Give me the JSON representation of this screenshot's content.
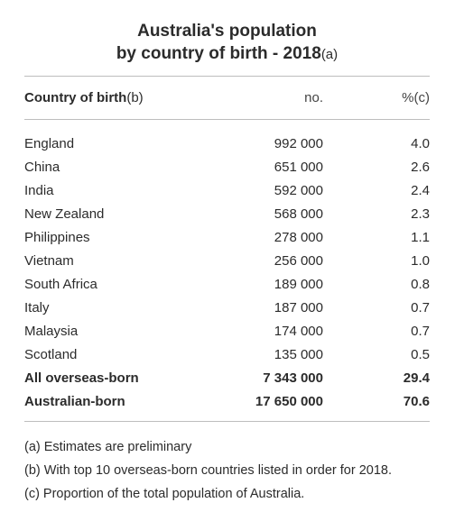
{
  "title": {
    "line1": "Australia's population",
    "line2": "by country of birth - 2018",
    "line2_note": "(a)"
  },
  "header": {
    "country": "Country of birth",
    "country_note": "(b)",
    "no": "no.",
    "pct": "%(c)"
  },
  "rows": [
    {
      "country": "England",
      "no": "992 000",
      "pct": "4.0"
    },
    {
      "country": "China",
      "no": "651 000",
      "pct": "2.6"
    },
    {
      "country": "India",
      "no": "592 000",
      "pct": "2.4"
    },
    {
      "country": "New Zealand",
      "no": "568 000",
      "pct": "2.3"
    },
    {
      "country": "Philippines",
      "no": "278 000",
      "pct": "1.1"
    },
    {
      "country": "Vietnam",
      "no": "256 000",
      "pct": "1.0"
    },
    {
      "country": "South Africa",
      "no": "189 000",
      "pct": "0.8"
    },
    {
      "country": "Italy",
      "no": "187 000",
      "pct": "0.7"
    },
    {
      "country": "Malaysia",
      "no": "174 000",
      "pct": "0.7"
    },
    {
      "country": "Scotland",
      "no": "135 000",
      "pct": "0.5"
    }
  ],
  "totals": [
    {
      "country": "All overseas-born",
      "no": "7 343 000",
      "pct": "29.4"
    },
    {
      "country": "Australian-born",
      "no": "17 650 000",
      "pct": "70.6"
    }
  ],
  "notes": [
    "(a) Estimates are preliminary",
    "(b) With top 10 overseas-born countries listed in order for 2018.",
    "(c) Proportion of the total population of Australia."
  ],
  "colors": {
    "text": "#2b2b2b",
    "rule": "#bdbdbd"
  }
}
